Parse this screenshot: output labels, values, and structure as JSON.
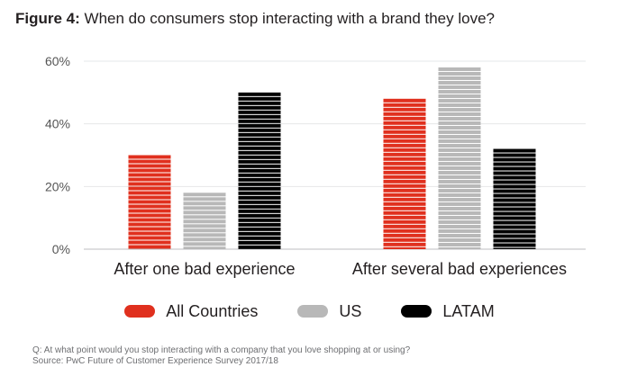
{
  "title": {
    "prefix": "Figure 4:",
    "text": "When do consumers stop interacting with a brand they love?"
  },
  "footnote": {
    "question": "Q: At what point would you stop interacting with a company that you love shopping at or using?",
    "source": "Source: PwC Future of Customer Experience Survey 2017/18"
  },
  "chart_data": {
    "type": "bar",
    "categories": [
      "After one bad experience",
      "After several bad experiences"
    ],
    "series": [
      {
        "name": "All Countries",
        "values": [
          30,
          48
        ],
        "color": "#e0301e"
      },
      {
        "name": "US",
        "values": [
          18,
          58
        ],
        "color": "#b8b8b8"
      },
      {
        "name": "LATAM",
        "values": [
          50,
          32
        ],
        "color": "#000000"
      }
    ],
    "yticks": [
      "0%",
      "20%",
      "40%",
      "60%"
    ],
    "ytick_values": [
      0,
      20,
      40,
      60
    ],
    "ylim": [
      0,
      60
    ],
    "grid": true,
    "legend_position": "bottom",
    "bar_style": "horizontal-striped"
  }
}
